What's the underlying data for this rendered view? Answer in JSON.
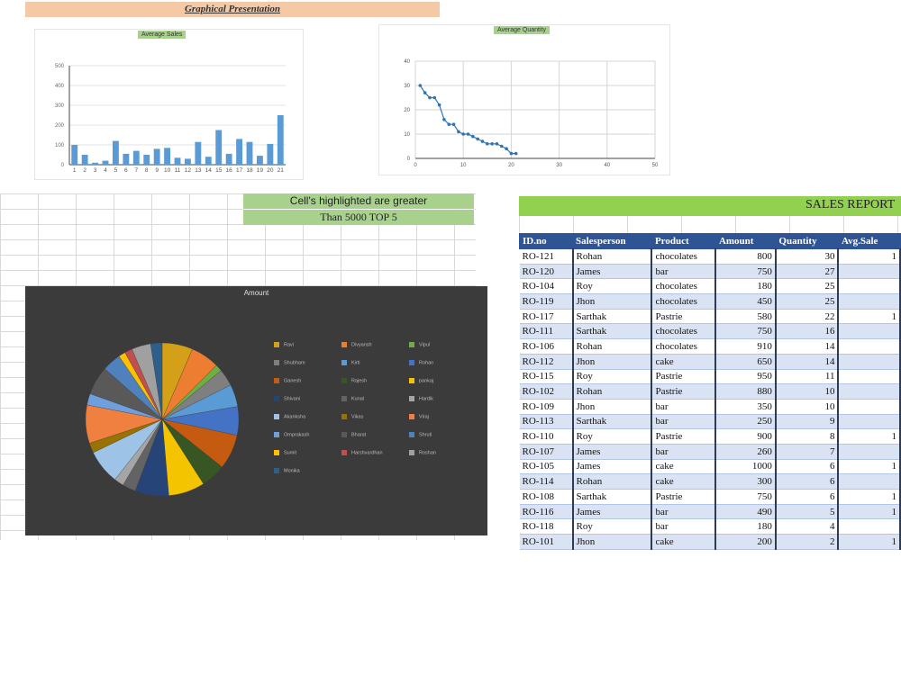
{
  "banner": "Graphical Presentation",
  "charts": {
    "bar_title": "Average Sales",
    "line_title": "Average Quantity",
    "pie_title": "Amount"
  },
  "chart_data": [
    {
      "type": "bar",
      "title": "Average Sales",
      "categories": [
        "1",
        "2",
        "3",
        "4",
        "5",
        "6",
        "7",
        "8",
        "9",
        "10",
        "11",
        "12",
        "13",
        "14",
        "15",
        "16",
        "17",
        "18",
        "19",
        "20",
        "21"
      ],
      "values": [
        100,
        50,
        10,
        20,
        120,
        55,
        70,
        50,
        80,
        85,
        35,
        30,
        115,
        40,
        175,
        55,
        130,
        115,
        45,
        105,
        250
      ],
      "ylim": [
        0,
        500
      ],
      "yticks": [
        0,
        100,
        200,
        300,
        400,
        500
      ],
      "grid": true
    },
    {
      "type": "line",
      "title": "Average Quantity",
      "x": [
        1,
        2,
        3,
        4,
        5,
        6,
        7,
        8,
        9,
        10,
        11,
        12,
        13,
        14,
        15,
        16,
        17,
        18,
        19,
        20,
        21
      ],
      "y": [
        30,
        27,
        25,
        25,
        22,
        16,
        14,
        14,
        11,
        10,
        10,
        9,
        8,
        7,
        6,
        6,
        6,
        5,
        4,
        2,
        2
      ],
      "xlim": [
        0,
        50
      ],
      "ylim": [
        0,
        40
      ],
      "xticks": [
        0,
        10,
        20,
        30,
        40,
        50
      ],
      "yticks": [
        0,
        10,
        20,
        30,
        40
      ],
      "grid": true
    },
    {
      "type": "pie",
      "title": "Amount",
      "labels": [
        "Ravi",
        "Divyansh",
        "Vipul",
        "Shubham",
        "Kirti",
        "Rohan",
        "Ganesh",
        "Rajesh",
        "pankaj",
        "Shivani",
        "Kunal",
        "Hardik",
        "Akanksha",
        "Vikas",
        "Viraj",
        "Omprakash",
        "Bharat",
        "Shruti",
        "Sumit",
        "Harshvardhan",
        "Roshan",
        "Monika"
      ],
      "values": [
        800,
        750,
        180,
        450,
        580,
        750,
        910,
        650,
        950,
        880,
        350,
        250,
        900,
        260,
        1000,
        300,
        750,
        490,
        180,
        200,
        500,
        300
      ],
      "colors": [
        "#d4a017",
        "#ed7d31",
        "#70ad47",
        "#7f7f7f",
        "#5b9bd5",
        "#4472c4",
        "#c55a11",
        "#375623",
        "#f4c400",
        "#264478",
        "#636363",
        "#a5a5a5",
        "#9dc3e6",
        "#997300",
        "#f08040",
        "#6f9fdc",
        "#595959",
        "#4f81bd",
        "#ffc000",
        "#c0504d",
        "#a0a0a0",
        "#2e5f8a"
      ]
    }
  ],
  "highlight_note": {
    "line1": "Cell's highlighted are greater",
    "line2": "Than 5000 TOP 5"
  },
  "report": {
    "title": "SALES REPORT",
    "headers": [
      "ID.no",
      "Salesperson",
      "Product",
      "Amount",
      "Quantity",
      "Avg.Sale"
    ],
    "rows": [
      [
        "RO-121",
        "Rohan",
        "chocolates",
        "800",
        "30",
        "1"
      ],
      [
        "RO-120",
        "James",
        "bar",
        "750",
        "27",
        ""
      ],
      [
        "RO-104",
        "Roy",
        "chocolates",
        "180",
        "25",
        ""
      ],
      [
        "RO-119",
        "Jhon",
        "chocolates",
        "450",
        "25",
        ""
      ],
      [
        "RO-117",
        "Sarthak",
        "Pastrie",
        "580",
        "22",
        "1"
      ],
      [
        "RO-111",
        "Sarthak",
        "chocolates",
        "750",
        "16",
        ""
      ],
      [
        "RO-106",
        "Rohan",
        "chocolates",
        "910",
        "14",
        ""
      ],
      [
        "RO-112",
        "Jhon",
        "cake",
        "650",
        "14",
        ""
      ],
      [
        "RO-115",
        "Roy",
        "Pastrie",
        "950",
        "11",
        ""
      ],
      [
        "RO-102",
        "Rohan",
        "Pastrie",
        "880",
        "10",
        ""
      ],
      [
        "RO-109",
        "Jhon",
        "bar",
        "350",
        "10",
        ""
      ],
      [
        "RO-113",
        "Sarthak",
        "bar",
        "250",
        "9",
        ""
      ],
      [
        "RO-110",
        "Roy",
        "Pastrie",
        "900",
        "8",
        "1"
      ],
      [
        "RO-107",
        "James",
        "bar",
        "260",
        "7",
        ""
      ],
      [
        "RO-105",
        "James",
        "cake",
        "1000",
        "6",
        "1"
      ],
      [
        "RO-114",
        "Rohan",
        "cake",
        "300",
        "6",
        ""
      ],
      [
        "RO-108",
        "Sarthak",
        "Pastrie",
        "750",
        "6",
        "1"
      ],
      [
        "RO-116",
        "James",
        "bar",
        "490",
        "5",
        "1"
      ],
      [
        "RO-118",
        "Roy",
        "bar",
        "180",
        "4",
        ""
      ],
      [
        "RO-101",
        "Jhon",
        "cake",
        "200",
        "2",
        "1"
      ]
    ]
  }
}
